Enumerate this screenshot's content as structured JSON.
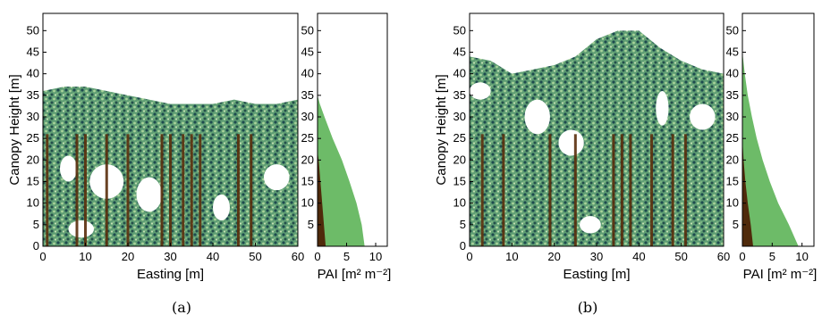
{
  "chart_data": [
    {
      "type": "area",
      "panel_label": "(a)",
      "tls_panel": {
        "xlabel": "Easting [m]",
        "ylabel": "Canopy Height [m]",
        "xlim": [
          0,
          60
        ],
        "ylim": [
          0,
          54
        ],
        "xticks": [
          "0",
          "10",
          "20",
          "30",
          "40",
          "50",
          "60"
        ],
        "yticks": [
          "0",
          "5",
          "10",
          "15",
          "20",
          "25",
          "30",
          "35",
          "40",
          "45",
          "50"
        ],
        "canopy_top_height": [
          36,
          37,
          37,
          36,
          35,
          34,
          33,
          33,
          33,
          34,
          33,
          33,
          34
        ],
        "stem_positions": [
          1,
          8,
          10,
          15,
          20,
          28,
          30,
          33,
          35,
          37,
          46,
          49
        ]
      },
      "pai_panel": {
        "xlabel": "PAI [m² m⁻²]",
        "xlim": [
          0,
          12
        ],
        "ylim": [
          0,
          54
        ],
        "xticks": [
          "0",
          "5",
          "10"
        ],
        "yticks": [
          "5",
          "10",
          "15",
          "20",
          "25",
          "30",
          "35",
          "40",
          "45",
          "50"
        ],
        "leaf_area": {
          "height": [
            0,
            5,
            10,
            15,
            20,
            25,
            30,
            33,
            35
          ],
          "pai": [
            8.1,
            7.6,
            6.7,
            5.5,
            4.2,
            2.6,
            1.2,
            0.4,
            0
          ]
        },
        "woody_area": {
          "height": [
            0,
            5,
            10,
            15,
            20,
            22
          ],
          "pai": [
            1.4,
            1.1,
            0.8,
            0.5,
            0.2,
            0
          ]
        }
      }
    },
    {
      "type": "area",
      "panel_label": "(b)",
      "tls_panel": {
        "xlabel": "Easting [m]",
        "ylabel": "Canopy Height [m]",
        "xlim": [
          0,
          60
        ],
        "ylim": [
          0,
          54
        ],
        "xticks": [
          "0",
          "10",
          "20",
          "30",
          "40",
          "50",
          "60"
        ],
        "yticks": [
          "0",
          "5",
          "10",
          "15",
          "20",
          "25",
          "30",
          "35",
          "40",
          "45",
          "50"
        ],
        "canopy_top_height": [
          44,
          43,
          40,
          41,
          42,
          44,
          48,
          50,
          50,
          46,
          43,
          41,
          40
        ],
        "stem_positions": [
          3,
          8,
          19,
          25,
          34,
          36,
          38,
          43,
          48,
          51
        ]
      },
      "pai_panel": {
        "xlabel": "PAI [m² m⁻²]",
        "xlim": [
          0,
          12
        ],
        "ylim": [
          0,
          54
        ],
        "xticks": [
          "0",
          "5",
          "10"
        ],
        "yticks": [
          "5",
          "10",
          "15",
          "20",
          "25",
          "30",
          "35",
          "40",
          "45",
          "50"
        ],
        "leaf_area": {
          "height": [
            0,
            5,
            10,
            15,
            20,
            25,
            30,
            35,
            40,
            45
          ],
          "pai": [
            9.4,
            7.8,
            6.0,
            4.6,
            3.4,
            2.4,
            1.6,
            0.9,
            0.4,
            0
          ]
        },
        "woody_area": {
          "height": [
            0,
            5,
            10,
            15,
            20,
            25
          ],
          "pai": [
            1.8,
            1.4,
            0.9,
            0.5,
            0.2,
            0
          ]
        }
      }
    }
  ],
  "colors": {
    "leaf_light": "#a9d39a",
    "leaf_mid": "#5f9e74",
    "leaf_dark": "#1d4a4e",
    "stem": "#5a2e0c",
    "pai_leaf_fill": "#6dbb68",
    "pai_woody_fill": "#4f2a0b"
  }
}
